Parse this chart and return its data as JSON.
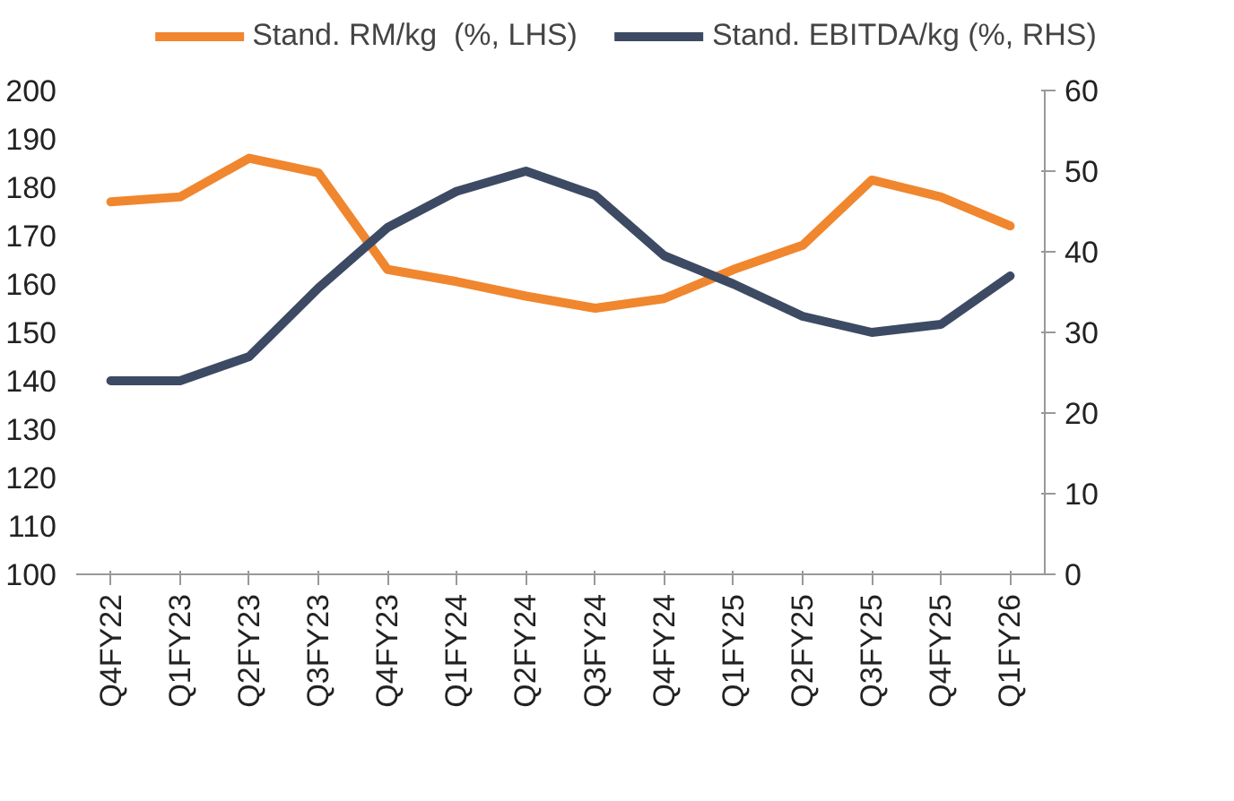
{
  "chart_data": {
    "type": "line",
    "categories": [
      "Q4FY22",
      "Q1FY23",
      "Q2FY23",
      "Q3FY23",
      "Q4FY23",
      "Q1FY24",
      "Q2FY24",
      "Q3FY24",
      "Q4FY24",
      "Q1FY25",
      "Q2FY25",
      "Q3FY25",
      "Q4FY25",
      "Q1FY26"
    ],
    "series": [
      {
        "name": "Stand. RM/kg  (%, LHS)",
        "color": "#f0862e",
        "values": [
          177,
          178,
          186,
          183,
          163,
          160.5,
          157.5,
          155,
          157,
          163,
          168,
          181.5,
          178,
          172
        ]
      },
      {
        "name": "Stand. EBITDA/kg (%, RHS)",
        "color": "#3d4a63",
        "axis": "y2",
        "values": [
          24,
          24,
          27,
          35.5,
          43,
          47.5,
          50,
          47,
          39.5,
          36,
          32,
          30,
          31,
          37
        ]
      }
    ],
    "ylim": [
      100,
      200
    ],
    "yticks": [
      100,
      110,
      120,
      130,
      140,
      150,
      160,
      170,
      180,
      190,
      200
    ],
    "y2lim": [
      0,
      60
    ],
    "y2ticks": [
      0,
      10,
      20,
      30,
      40,
      50,
      60
    ],
    "legend": "top",
    "grid": false,
    "marker": "none",
    "line_style": "solid"
  }
}
